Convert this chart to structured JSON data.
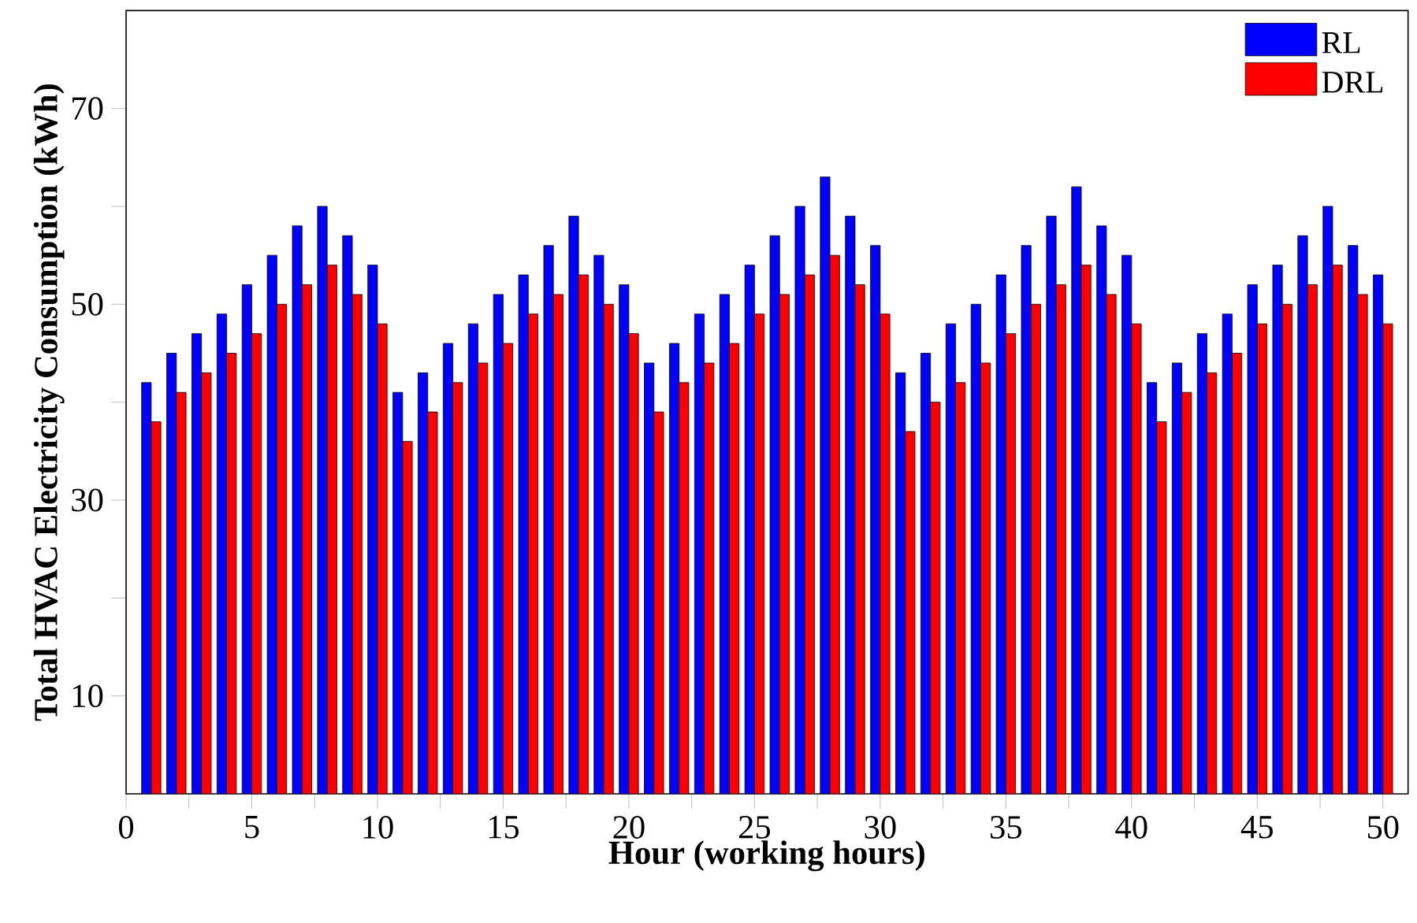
{
  "chart_data": {
    "type": "bar",
    "xlabel": "Hour (working hours)",
    "ylabel": "Total HVAC Electricity Consumption (kWh)",
    "x": [
      1,
      2,
      3,
      4,
      5,
      6,
      7,
      8,
      9,
      10,
      11,
      12,
      13,
      14,
      15,
      16,
      17,
      18,
      19,
      20,
      21,
      22,
      23,
      24,
      25,
      26,
      27,
      28,
      29,
      30,
      31,
      32,
      33,
      34,
      35,
      36,
      37,
      38,
      39,
      40,
      41,
      42,
      43,
      44,
      45,
      46,
      47,
      48,
      49,
      50
    ],
    "series": [
      {
        "name": "RL",
        "color": "#0000ff",
        "values": [
          42,
          45,
          47,
          49,
          52,
          55,
          58,
          60,
          57,
          54,
          41,
          43,
          46,
          48,
          51,
          53,
          56,
          59,
          55,
          52,
          44,
          46,
          49,
          51,
          54,
          57,
          60,
          63,
          59,
          56,
          43,
          45,
          48,
          50,
          53,
          56,
          59,
          62,
          58,
          55,
          42,
          44,
          47,
          49,
          52,
          54,
          57,
          60,
          56,
          53
        ]
      },
      {
        "name": "DRL",
        "color": "#ff0000",
        "values": [
          38,
          41,
          43,
          45,
          47,
          50,
          52,
          54,
          51,
          48,
          36,
          39,
          42,
          44,
          46,
          49,
          51,
          53,
          50,
          47,
          39,
          42,
          44,
          46,
          49,
          51,
          53,
          55,
          52,
          49,
          37,
          40,
          42,
          44,
          47,
          50,
          52,
          54,
          51,
          48,
          38,
          41,
          43,
          45,
          48,
          50,
          52,
          54,
          51,
          48
        ]
      }
    ],
    "xlim": [
      0,
      51
    ],
    "xticks": [
      0,
      {
        "value": 2.5,
        "label": null
      },
      5,
      {
        "value": 7.5,
        "label": null
      },
      10,
      {
        "value": 12.5,
        "label": null
      },
      15,
      {
        "value": 17.5,
        "label": null
      },
      20,
      {
        "value": 22.5,
        "label": null
      },
      25,
      {
        "value": 27.5,
        "label": null
      },
      30,
      {
        "value": 32.5,
        "label": null
      },
      35,
      {
        "value": 37.5,
        "label": null
      },
      40,
      {
        "value": 42.5,
        "label": null
      },
      45,
      {
        "value": 47.5,
        "label": null
      },
      50
    ],
    "ylim": [
      0,
      80
    ],
    "yticks": [
      10,
      {
        "value": 20,
        "label": null
      },
      30,
      {
        "value": 40,
        "label": null
      },
      50,
      {
        "value": 60,
        "label": null
      },
      70
    ],
    "legend": "top right",
    "grid": false
  }
}
